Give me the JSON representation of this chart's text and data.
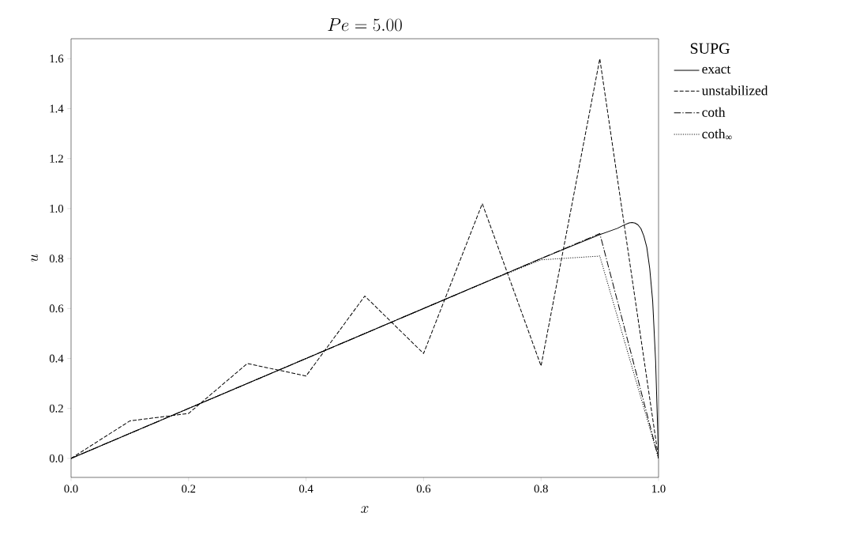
{
  "chart_data": {
    "type": "line",
    "title": "Pe = 5.00",
    "xlabel": "x",
    "ylabel": "u",
    "legend_title": "SUPG",
    "legend": "top right",
    "grid": false,
    "marker": "none",
    "xlim": [
      0,
      1
    ],
    "ylim": [
      -0.076,
      1.68
    ],
    "xticks": [
      {
        "value": 0,
        "label": "0.0"
      },
      {
        "value": 0.2,
        "label": "0.2"
      },
      {
        "value": 0.4,
        "label": "0.4"
      },
      {
        "value": 0.6,
        "label": "0.6"
      },
      {
        "value": 0.8,
        "label": "0.8"
      },
      {
        "value": 1,
        "label": "1.0"
      }
    ],
    "yticks": [
      {
        "value": 0,
        "label": "0.0"
      },
      {
        "value": 0.2,
        "label": "0.2"
      },
      {
        "value": 0.4,
        "label": "0.4"
      },
      {
        "value": 0.6,
        "label": "0.6"
      },
      {
        "value": 0.8,
        "label": "0.8"
      },
      {
        "value": 1,
        "label": "1.0"
      },
      {
        "value": 1.2,
        "label": "1.2"
      },
      {
        "value": 1.4,
        "label": "1.4"
      },
      {
        "value": 1.6,
        "label": "1.6"
      }
    ],
    "series": [
      {
        "name": "exact",
        "color": "#000000",
        "line_style": "solid",
        "x": [
          0,
          0.5,
          0.8,
          0.9,
          0.93,
          0.94,
          0.95,
          0.955,
          0.96,
          0.965,
          0.97,
          0.975,
          0.98,
          0.985,
          0.99,
          0.995,
          1
        ],
        "values": [
          0,
          0.5,
          0.8,
          0.896,
          0.921,
          0.933,
          0.943,
          0.944,
          0.942,
          0.935,
          0.92,
          0.89,
          0.845,
          0.76,
          0.63,
          0.39,
          0
        ]
      },
      {
        "name": "unstabilized",
        "color": "#000000",
        "line_style": "dashed",
        "x": [
          0,
          0.1,
          0.2,
          0.3,
          0.4,
          0.5,
          0.6,
          0.7,
          0.8,
          0.9,
          1
        ],
        "values": [
          0,
          0.15,
          0.18,
          0.38,
          0.33,
          0.65,
          0.42,
          1.02,
          0.37,
          1.6,
          0
        ]
      },
      {
        "name": "coth",
        "color": "#000000",
        "line_style": "dashdot",
        "x": [
          0,
          0.1,
          0.2,
          0.3,
          0.4,
          0.5,
          0.6,
          0.7,
          0.8,
          0.9,
          1
        ],
        "values": [
          0,
          0.1,
          0.2,
          0.3,
          0.4,
          0.5,
          0.6,
          0.7,
          0.8,
          0.9,
          0
        ]
      },
      {
        "name": "coth$_{∞}$",
        "color": "#000000",
        "line_style": "dotted",
        "x": [
          0,
          0.1,
          0.2,
          0.3,
          0.4,
          0.5,
          0.6,
          0.7,
          0.8,
          0.9,
          1
        ],
        "values": [
          0,
          0.1,
          0.2,
          0.3,
          0.4,
          0.5,
          0.6,
          0.7,
          0.795,
          0.81,
          0
        ]
      }
    ]
  }
}
